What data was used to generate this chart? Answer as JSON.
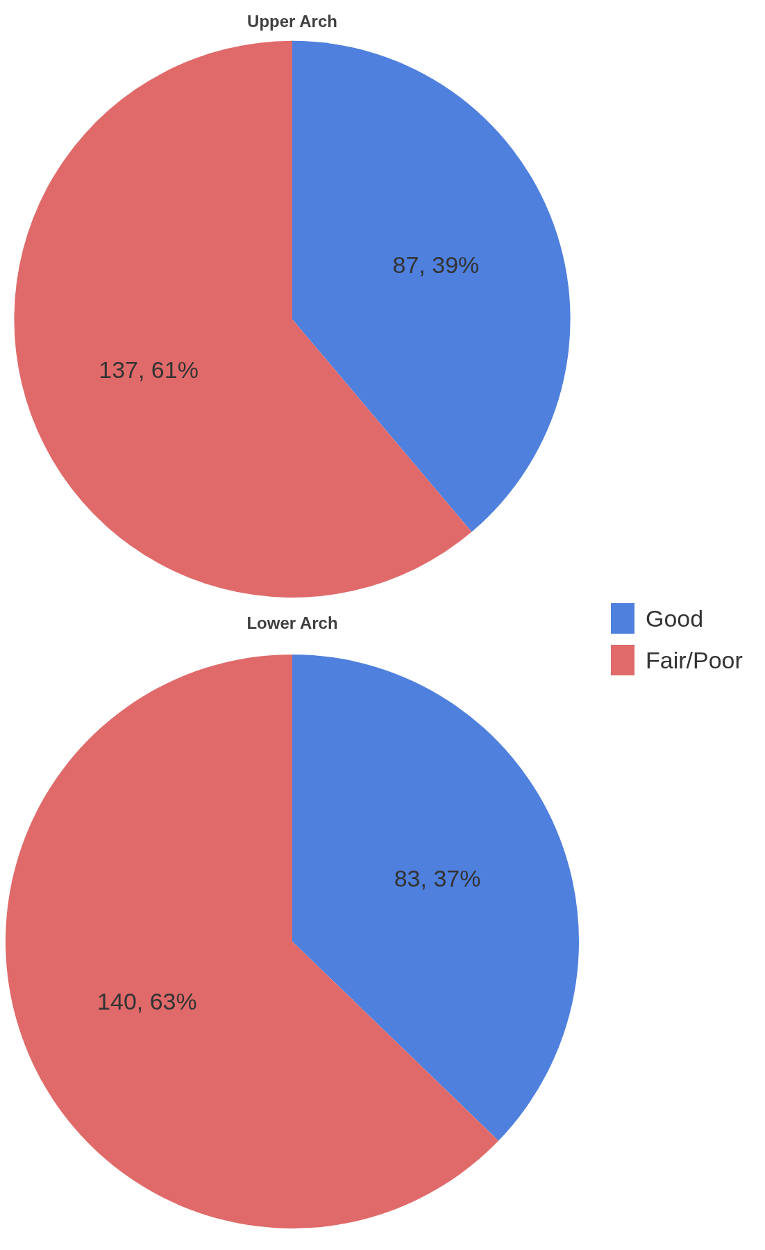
{
  "chart_data": [
    {
      "type": "pie",
      "title": "Upper Arch",
      "categories": [
        null,
        null
      ],
      "values": [
        87,
        137
      ],
      "colors": [
        "#4f80dd",
        "#e06a6a"
      ],
      "value_labels": [
        "87, 39%",
        "137, 61%"
      ]
    },
    {
      "type": "pie",
      "title": "Lower Arch",
      "categories": [
        "Good",
        "Fair/Poor"
      ],
      "values": [
        83,
        140
      ],
      "colors": [
        "#4f80dd",
        "#e06a6a"
      ],
      "value_labels": [
        "83, 37%",
        "140, 63%"
      ],
      "legend": "right"
    }
  ]
}
